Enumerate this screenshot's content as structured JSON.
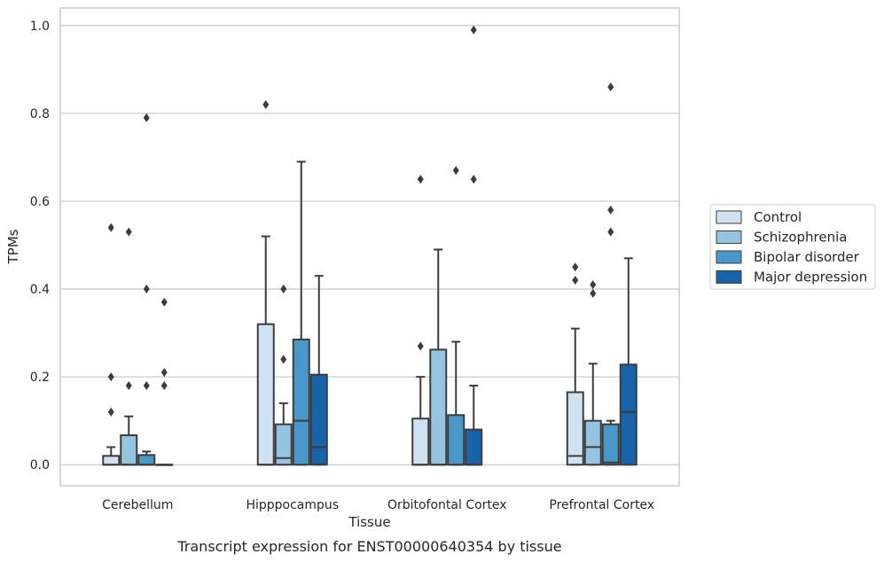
{
  "caption": "Transcript expression for ENST00000640354 by tissue",
  "chart_data": {
    "type": "box",
    "xlabel": "Tissue",
    "ylabel": "TPMs",
    "ylim": [
      -0.048,
      1.04
    ],
    "yticks": [
      "0.0",
      "0.2",
      "0.4",
      "0.6",
      "0.8",
      "1.0"
    ],
    "grid": "horizontal",
    "legend_position": "right",
    "categories": [
      "Cerebellum",
      "Hipppocampus",
      "Orbitofontal Cortex",
      "Prefrontal Cortex"
    ],
    "series": [
      {
        "name": "Control",
        "color": "#d0e1f2",
        "boxes": [
          {
            "q1": 0.0,
            "median": 0.0,
            "q3": 0.02,
            "wlow": 0.0,
            "whigh": 0.04,
            "outliers": [
              0.12,
              0.2,
              0.54
            ]
          },
          {
            "q1": 0.0,
            "median": 0.0,
            "q3": 0.32,
            "wlow": 0.0,
            "whigh": 0.52,
            "outliers": [
              0.82
            ]
          },
          {
            "q1": 0.0,
            "median": 0.0,
            "q3": 0.105,
            "wlow": 0.0,
            "whigh": 0.2,
            "outliers": [
              0.27,
              0.65
            ]
          },
          {
            "q1": 0.0,
            "median": 0.02,
            "q3": 0.165,
            "wlow": 0.0,
            "whigh": 0.31,
            "outliers": [
              0.42,
              0.45
            ]
          }
        ]
      },
      {
        "name": "Schizophrenia",
        "color": "#94c4df",
        "boxes": [
          {
            "q1": 0.0,
            "median": 0.0,
            "q3": 0.067,
            "wlow": 0.0,
            "whigh": 0.11,
            "outliers": [
              0.18,
              0.53
            ]
          },
          {
            "q1": 0.0,
            "median": 0.015,
            "q3": 0.092,
            "wlow": 0.0,
            "whigh": 0.14,
            "outliers": [
              0.24,
              0.4
            ]
          },
          {
            "q1": 0.0,
            "median": 0.0,
            "q3": 0.262,
            "wlow": 0.0,
            "whigh": 0.49,
            "outliers": []
          },
          {
            "q1": 0.0,
            "median": 0.04,
            "q3": 0.1,
            "wlow": 0.0,
            "whigh": 0.23,
            "outliers": [
              0.39,
              0.41
            ]
          }
        ]
      },
      {
        "name": "Bipolar disorder",
        "color": "#4a98c9",
        "boxes": [
          {
            "q1": 0.0,
            "median": 0.0,
            "q3": 0.022,
            "wlow": 0.0,
            "whigh": 0.03,
            "outliers": [
              0.18,
              0.4,
              0.79
            ]
          },
          {
            "q1": 0.0,
            "median": 0.1,
            "q3": 0.285,
            "wlow": 0.0,
            "whigh": 0.69,
            "outliers": []
          },
          {
            "q1": 0.0,
            "median": 0.0,
            "q3": 0.113,
            "wlow": 0.0,
            "whigh": 0.28,
            "outliers": [
              0.67
            ]
          },
          {
            "q1": 0.0,
            "median": 0.005,
            "q3": 0.092,
            "wlow": 0.0,
            "whigh": 0.1,
            "outliers": [
              0.53,
              0.58,
              0.86
            ]
          }
        ]
      },
      {
        "name": "Major depression",
        "color": "#1764ab",
        "boxes": [
          {
            "q1": 0.0,
            "median": 0.0,
            "q3": 0.0,
            "wlow": 0.0,
            "whigh": 0.0,
            "outliers": [
              0.18,
              0.21,
              0.37
            ]
          },
          {
            "q1": 0.0,
            "median": 0.04,
            "q3": 0.205,
            "wlow": 0.0,
            "whigh": 0.43,
            "outliers": []
          },
          {
            "q1": 0.0,
            "median": 0.0,
            "q3": 0.08,
            "wlow": 0.0,
            "whigh": 0.18,
            "outliers": [
              0.65,
              0.99
            ]
          },
          {
            "q1": 0.0,
            "median": 0.12,
            "q3": 0.228,
            "wlow": 0.0,
            "whigh": 0.47,
            "outliers": []
          }
        ]
      }
    ]
  }
}
